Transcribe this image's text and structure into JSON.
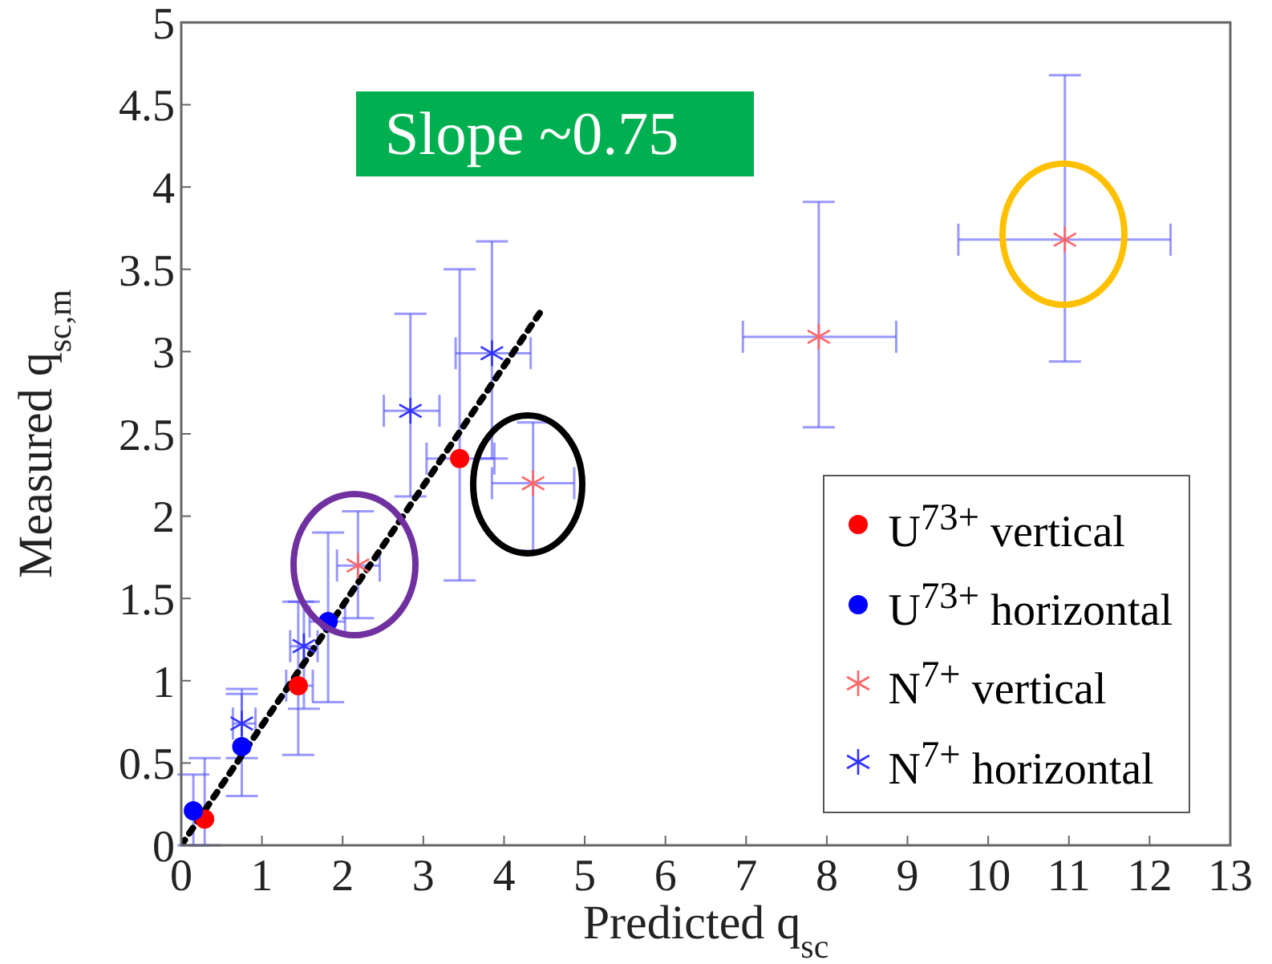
{
  "chart_data": {
    "type": "scatter",
    "xlabel": "Predicted q$_{sc}$",
    "ylabel": "Measured q$_{sc,m}$",
    "xlim": [
      0,
      13
    ],
    "xticks": [
      0,
      1,
      2,
      3,
      4,
      5,
      6,
      7,
      8,
      9,
      10,
      11,
      12,
      13
    ],
    "ylim": [
      0,
      5
    ],
    "yticks": [
      0,
      0.5,
      1,
      1.5,
      2,
      2.5,
      3,
      3.5,
      4,
      4.5,
      5
    ],
    "grid": false,
    "legend": "bottom right",
    "annotations": [
      "Slope ~0.75"
    ],
    "series": [
      {
        "name": "U$^{73+}$ vertical",
        "color": "#ff0000",
        "marker": "circle",
        "x": [
          0.29,
          1.45,
          3.45
        ],
        "values": [
          0.16,
          0.97,
          2.35
        ],
        "errors": [
          [
            0,
            0.53
          ],
          [
            0.55,
            1.48
          ],
          [
            1.61,
            3.5
          ]
        ],
        "xerrors": [
          null,
          [
            1.3,
            1.63
          ],
          [
            3.04,
            3.88
          ]
        ]
      },
      {
        "name": "U$^{73+}$ horizontal",
        "color": "#0000ff",
        "marker": "circle",
        "x": [
          0.15,
          0.75,
          1.82
        ],
        "values": [
          0.21,
          0.6,
          1.36
        ],
        "errors": [
          [
            0,
            0.43
          ],
          [
            0.3,
            0.92
          ],
          [
            0.87,
            1.9
          ]
        ],
        "xerrors": [
          null,
          null,
          [
            1.59,
            2.03
          ]
        ]
      },
      {
        "name": "N$^{7+}$ vertical",
        "color": "#ff6666",
        "marker": "cross",
        "x": [
          2.19,
          4.36,
          7.9,
          10.95
        ],
        "values": [
          1.7,
          2.2,
          3.09,
          3.68
        ],
        "errors": [
          [
            1.38,
            2.03
          ],
          [
            1.79,
            2.57
          ],
          [
            2.54,
            3.91
          ],
          [
            2.94,
            4.68
          ]
        ],
        "xerrors": [
          [
            1.93,
            2.46
          ],
          [
            3.85,
            4.87
          ],
          [
            6.96,
            8.86
          ],
          [
            9.63,
            12.26
          ]
        ]
      },
      {
        "name": "N$^{7+}$ horizontal",
        "color": "#3333ff",
        "marker": "cross",
        "x": [
          0.75,
          1.52,
          2.84,
          3.85
        ],
        "values": [
          0.74,
          1.21,
          2.64,
          2.99
        ],
        "errors": [
          [
            0.53,
            0.95
          ],
          [
            0.83,
            1.48
          ],
          [
            2.12,
            3.23
          ],
          [
            2.35,
            3.67
          ]
        ],
        "xerrors": [
          [
            0.64,
            0.92
          ],
          [
            1.35,
            1.69
          ],
          [
            2.51,
            3.2
          ],
          [
            3.4,
            4.33
          ]
        ]
      },
      {
        "type": "line",
        "color": "#000000",
        "line_style": "dotted",
        "marker": "none",
        "x": [
          0,
          4.45
        ],
        "values": [
          0,
          3.24
        ]
      }
    ]
  }
}
